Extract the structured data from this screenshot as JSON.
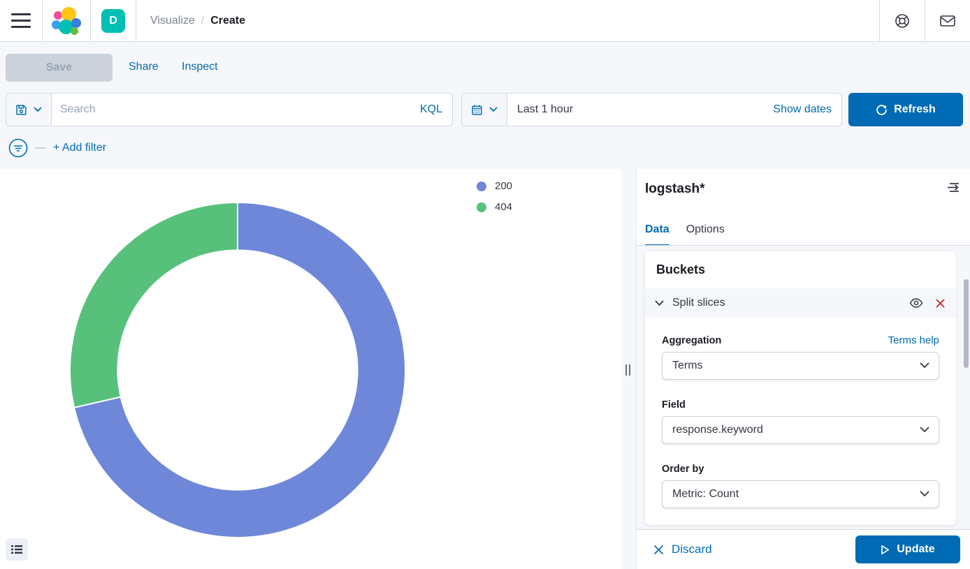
{
  "header": {
    "app_badge": "D",
    "breadcrumbs": {
      "parent": "Visualize",
      "separator": "/",
      "current": "Create"
    }
  },
  "toolbar": {
    "save_label": "Save",
    "share_label": "Share",
    "inspect_label": "Inspect"
  },
  "query_bar": {
    "placeholder": "Search",
    "language": "KQL"
  },
  "time_picker": {
    "value": "Last 1 hour",
    "show_dates_label": "Show dates",
    "refresh_label": "Refresh"
  },
  "filter_bar": {
    "add_filter_label": "+ Add filter"
  },
  "chart_data": {
    "type": "pie",
    "donut": true,
    "title": "",
    "categories": [
      "200",
      "404"
    ],
    "values_percent": [
      71.4,
      28.6
    ],
    "colors": [
      "#6E87D8",
      "#57C17B"
    ],
    "start_angle_deg": 0,
    "direction": "clockwise",
    "inner_radius_ratio": 0.715,
    "legend_position": "right"
  },
  "side_panel": {
    "index_pattern": "logstash*",
    "tabs": {
      "data": "Data",
      "options": "Options"
    },
    "buckets": {
      "title": "Buckets",
      "accordion_label": "Split slices",
      "aggregation": {
        "label": "Aggregation",
        "help_link": "Terms help",
        "value": "Terms"
      },
      "field": {
        "label": "Field",
        "value": "response.keyword"
      },
      "order_by": {
        "label": "Order by",
        "value": "Metric: Count"
      }
    },
    "footer": {
      "discard_label": "Discard",
      "update_label": "Update"
    }
  },
  "colors": {
    "primary": "#006BB4",
    "danger": "#BD271E",
    "page_background": "#F5F7FA",
    "border": "#D3DAE6",
    "text": "#343741"
  }
}
